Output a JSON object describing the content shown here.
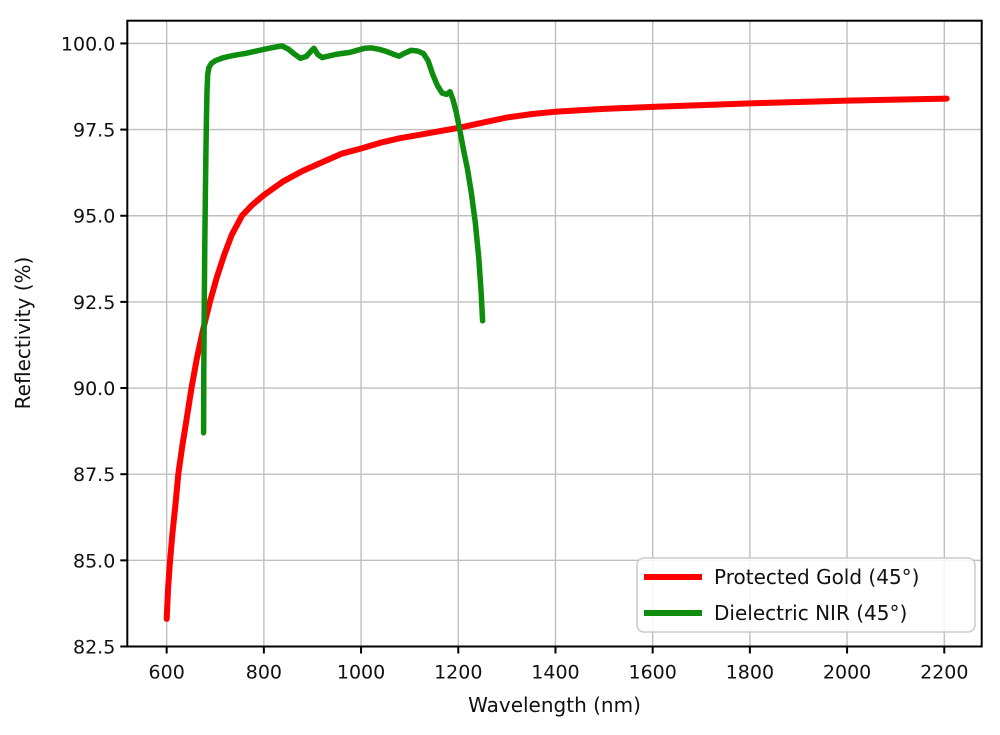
{
  "chart_data": {
    "type": "line",
    "title": "",
    "xlabel": "Wavelength (nm)",
    "ylabel": "Reflectivity (%)",
    "xlim": [
      519,
      2277
    ],
    "ylim": [
      82.5,
      100.66
    ],
    "grid": true,
    "legend_position": "lower right",
    "x_ticks": [
      600,
      800,
      1000,
      1200,
      1400,
      1600,
      1800,
      2000,
      2200
    ],
    "x_tick_labels": [
      "600",
      "800",
      "1000",
      "1200",
      "1400",
      "1600",
      "1800",
      "2000",
      "2200"
    ],
    "y_ticks": [
      82.5,
      85.0,
      87.5,
      90.0,
      92.5,
      95.0,
      97.5,
      100.0
    ],
    "y_tick_labels": [
      "82.5",
      "85.0",
      "87.5",
      "90.0",
      "92.5",
      "95.0",
      "97.5",
      "100.0"
    ],
    "grid_color": "#bfbfbf",
    "series": [
      {
        "name": "Protected Gold (45°)",
        "color": "#ff0000",
        "line_width": 6,
        "points": [
          [
            600,
            83.3
          ],
          [
            603,
            84.2
          ],
          [
            607,
            85.0
          ],
          [
            612,
            85.8
          ],
          [
            618,
            86.6
          ],
          [
            624,
            87.5
          ],
          [
            632,
            88.3
          ],
          [
            641,
            89.1
          ],
          [
            651,
            90.0
          ],
          [
            662,
            90.85
          ],
          [
            675,
            91.7
          ],
          [
            689,
            92.5
          ],
          [
            703,
            93.2
          ],
          [
            718,
            93.85
          ],
          [
            734,
            94.45
          ],
          [
            755,
            95.0
          ],
          [
            775,
            95.3
          ],
          [
            800,
            95.6
          ],
          [
            840,
            96.0
          ],
          [
            880,
            96.3
          ],
          [
            920,
            96.55
          ],
          [
            960,
            96.8
          ],
          [
            1000,
            96.95
          ],
          [
            1040,
            97.12
          ],
          [
            1080,
            97.25
          ],
          [
            1120,
            97.35
          ],
          [
            1160,
            97.45
          ],
          [
            1200,
            97.55
          ],
          [
            1250,
            97.7
          ],
          [
            1300,
            97.85
          ],
          [
            1350,
            97.95
          ],
          [
            1400,
            98.02
          ],
          [
            1450,
            98.06
          ],
          [
            1500,
            98.1
          ],
          [
            1550,
            98.13
          ],
          [
            1600,
            98.16
          ],
          [
            1700,
            98.21
          ],
          [
            1800,
            98.26
          ],
          [
            1900,
            98.3
          ],
          [
            2000,
            98.34
          ],
          [
            2100,
            98.37
          ],
          [
            2205,
            98.4
          ]
        ]
      },
      {
        "name": "Dielectric NIR (45°)",
        "color": "#0d8c0d",
        "line_width": 5.5,
        "points": [
          [
            676,
            88.7
          ],
          [
            676.5,
            90.5
          ],
          [
            677.5,
            92.5
          ],
          [
            678.5,
            94.2
          ],
          [
            680,
            95.9
          ],
          [
            681,
            97.0
          ],
          [
            682,
            97.9
          ],
          [
            683,
            98.6
          ],
          [
            684.5,
            99.1
          ],
          [
            687,
            99.3
          ],
          [
            692,
            99.42
          ],
          [
            700,
            99.5
          ],
          [
            715,
            99.58
          ],
          [
            730,
            99.63
          ],
          [
            745,
            99.67
          ],
          [
            762,
            99.71
          ],
          [
            778,
            99.76
          ],
          [
            794,
            99.81
          ],
          [
            810,
            99.86
          ],
          [
            825,
            99.9
          ],
          [
            837,
            99.93
          ],
          [
            850,
            99.84
          ],
          [
            862,
            99.7
          ],
          [
            875,
            99.57
          ],
          [
            887,
            99.62
          ],
          [
            896,
            99.76
          ],
          [
            903,
            99.86
          ],
          [
            911,
            99.68
          ],
          [
            920,
            99.59
          ],
          [
            932,
            99.63
          ],
          [
            947,
            99.68
          ],
          [
            962,
            99.71
          ],
          [
            977,
            99.74
          ],
          [
            992,
            99.8
          ],
          [
            1007,
            99.86
          ],
          [
            1022,
            99.87
          ],
          [
            1037,
            99.83
          ],
          [
            1052,
            99.77
          ],
          [
            1066,
            99.69
          ],
          [
            1078,
            99.63
          ],
          [
            1090,
            99.72
          ],
          [
            1103,
            99.8
          ],
          [
            1116,
            99.78
          ],
          [
            1128,
            99.71
          ],
          [
            1138,
            99.5
          ],
          [
            1147,
            99.12
          ],
          [
            1157,
            98.78
          ],
          [
            1167,
            98.56
          ],
          [
            1176,
            98.52
          ],
          [
            1183,
            98.6
          ],
          [
            1189,
            98.38
          ],
          [
            1196,
            98.0
          ],
          [
            1203,
            97.5
          ],
          [
            1211,
            96.9
          ],
          [
            1219,
            96.35
          ],
          [
            1227,
            95.65
          ],
          [
            1235,
            94.8
          ],
          [
            1242,
            93.8
          ],
          [
            1247,
            92.8
          ],
          [
            1250,
            91.95
          ]
        ]
      }
    ],
    "legend": {
      "entries": [
        "Protected Gold (45°)",
        "Dielectric NIR (45°)"
      ]
    }
  }
}
